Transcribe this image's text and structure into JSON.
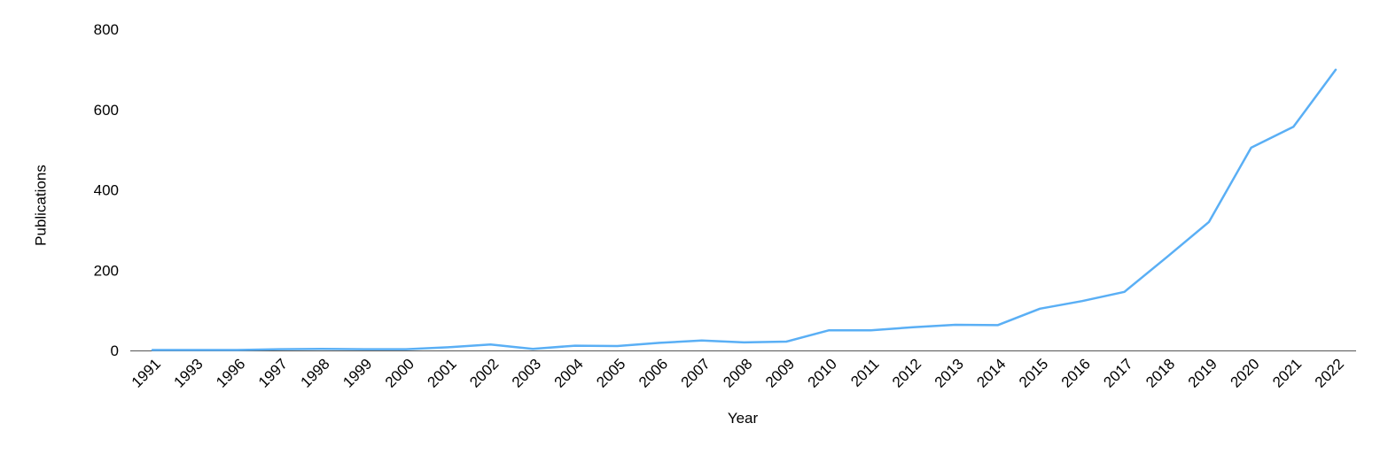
{
  "chart_data": {
    "type": "line",
    "title": "",
    "xlabel": "Year",
    "ylabel": "Publications",
    "ylim": [
      0,
      800
    ],
    "yticks": [
      0,
      200,
      400,
      600,
      800
    ],
    "grid": false,
    "legend": "none",
    "categories": [
      "1991",
      "1993",
      "1996",
      "1997",
      "1998",
      "1999",
      "2000",
      "2001",
      "2002",
      "2003",
      "2004",
      "2005",
      "2006",
      "2007",
      "2008",
      "2009",
      "2010",
      "2011",
      "2012",
      "2013",
      "2014",
      "2015",
      "2016",
      "2017",
      "2018",
      "2019",
      "2020",
      "2021",
      "2022"
    ],
    "series": [
      {
        "color": "#5aaff5",
        "values": [
          1,
          1,
          1,
          3,
          4,
          3,
          3,
          8,
          15,
          4,
          12,
          11,
          19,
          25,
          20,
          22,
          50,
          50,
          58,
          64,
          63,
          104,
          123,
          146,
          232,
          320,
          505,
          557,
          699
        ]
      }
    ],
    "axis_color": "#555555"
  }
}
